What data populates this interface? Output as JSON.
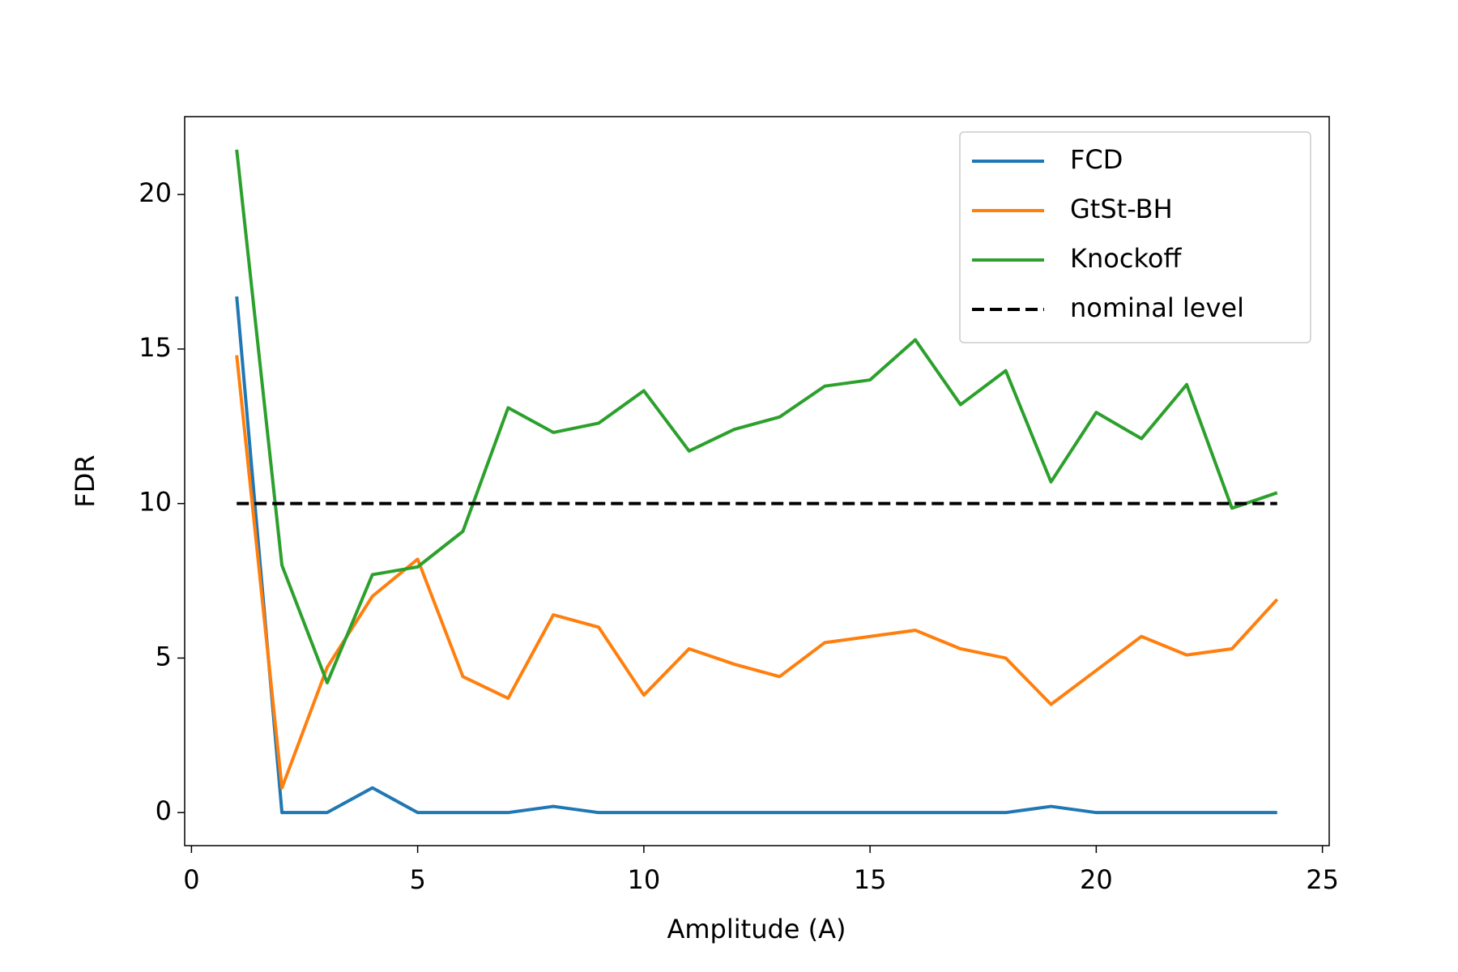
{
  "chart_data": {
    "type": "line",
    "x": [
      1,
      2,
      3,
      4,
      5,
      6,
      7,
      8,
      9,
      10,
      11,
      12,
      13,
      14,
      15,
      16,
      17,
      18,
      19,
      20,
      21,
      22,
      23,
      24
    ],
    "series": [
      {
        "name": "FCD",
        "color": "#1f77b4",
        "values": [
          16.7,
          0,
          0,
          0.8,
          0,
          0,
          0,
          0.2,
          0,
          0,
          0,
          0,
          0,
          0,
          0,
          0,
          0,
          0,
          0.2,
          0,
          0,
          0,
          0,
          0
        ]
      },
      {
        "name": "GtSt-BH",
        "color": "#ff7f0e",
        "values": [
          14.8,
          0.8,
          4.7,
          7.0,
          8.2,
          4.4,
          3.7,
          6.4,
          6.0,
          3.8,
          5.3,
          4.8,
          4.4,
          5.5,
          5.7,
          5.9,
          5.3,
          5.0,
          3.5,
          4.6,
          5.7,
          5.1,
          5.3,
          6.9
        ]
      },
      {
        "name": "Knockoff",
        "color": "#2ca02c",
        "values": [
          21.45,
          8.0,
          4.2,
          7.7,
          7.95,
          9.1,
          13.1,
          12.3,
          12.6,
          13.65,
          11.7,
          12.4,
          12.8,
          13.8,
          14.0,
          15.3,
          13.2,
          14.3,
          10.7,
          12.95,
          12.1,
          13.85,
          9.85,
          10.35
        ]
      },
      {
        "name": "nominal level",
        "color": "#000000",
        "dashed": true,
        "values": [
          10,
          10,
          10,
          10,
          10,
          10,
          10,
          10,
          10,
          10,
          10,
          10,
          10,
          10,
          10,
          10,
          10,
          10,
          10,
          10,
          10,
          10,
          10,
          10
        ]
      }
    ],
    "xlabel": "Amplitude (A)",
    "ylabel": "FDR",
    "xlim": [
      -0.15,
      25.15
    ],
    "xticks": [
      0,
      5,
      10,
      15,
      20,
      25
    ],
    "ylim": [
      -1.07,
      22.52
    ],
    "yticks": [
      0,
      5,
      10,
      15,
      20
    ],
    "legend": "upper right",
    "grid": false
  }
}
